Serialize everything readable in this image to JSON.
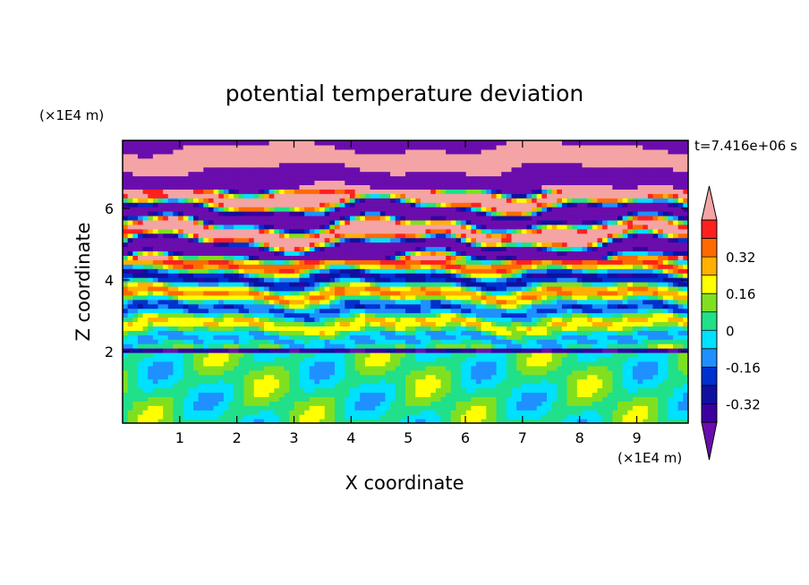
{
  "chart_data": {
    "type": "heatmap",
    "title": "potential temperature deviation",
    "xlabel": "X coordinate",
    "ylabel": "Z coordinate",
    "x_unit": "(×1E4 m)",
    "y_unit": "(×1E4 m)",
    "time_label": "t=7.416e+06 s",
    "xlim": [
      0,
      9.9
    ],
    "ylim": [
      0,
      7.9
    ],
    "x_ticks": [
      "1",
      "2",
      "3",
      "4",
      "5",
      "6",
      "7",
      "8",
      "9"
    ],
    "y_ticks": [
      "2",
      "4",
      "6"
    ],
    "colorbar": {
      "levels": [
        -0.48,
        -0.4,
        -0.32,
        -0.24,
        -0.16,
        -0.08,
        0,
        0.08,
        0.16,
        0.24,
        0.32,
        0.4,
        0.48
      ],
      "colors": [
        "#6a0dad",
        "#3a00a0",
        "#1010a0",
        "#0030d0",
        "#1e90ff",
        "#00e0ff",
        "#20e08a",
        "#80e020",
        "#ffff00",
        "#ffb000",
        "#ff6a00",
        "#ff2020",
        "#f4a4a4"
      ],
      "tick_labels": [
        "0.32",
        "0.16",
        "0",
        "-0.16",
        "-0.32"
      ]
    },
    "grid": false
  }
}
